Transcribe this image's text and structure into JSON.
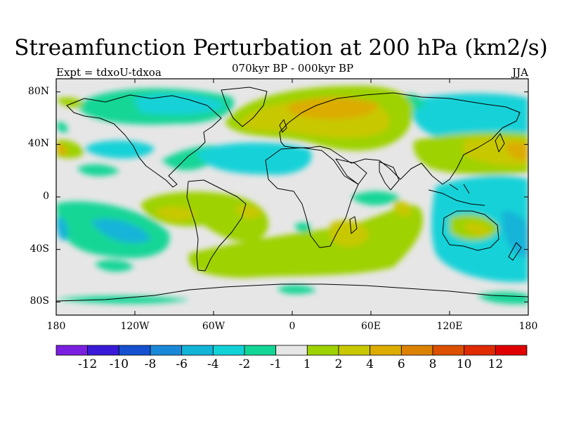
{
  "title": "Streamfunction Perturbation at 200 hPa (km2/s)",
  "experiment": "Expt = tdxoU-tdxoa",
  "subtitle": "070kyr BP - 000kyr BP",
  "season": "JJA",
  "lat_ticks": [
    "80N",
    "40N",
    "0",
    "40S",
    "80S"
  ],
  "lon_ticks": [
    "180",
    "120W",
    "60W",
    "0",
    "60E",
    "120E",
    "180"
  ],
  "colorbar": {
    "labels": [
      "-12",
      "-10",
      "-8",
      "-6",
      "-4",
      "-2",
      "-1",
      "1",
      "2",
      "4",
      "6",
      "8",
      "10",
      "12"
    ],
    "colors": [
      "#7a1ee0",
      "#3a1ad8",
      "#1450d0",
      "#1a88d8",
      "#12b4d8",
      "#12d2d8",
      "#12d696",
      "#e6e6e6",
      "#9ed200",
      "#c8c800",
      "#dcac00",
      "#dc8200",
      "#dc5000",
      "#e02a00",
      "#e00000"
    ]
  },
  "chart_data": {
    "type": "heatmap",
    "title": "Streamfunction Perturbation at 200 hPa (km2/s)",
    "subtitle": "070kyr BP - 000kyr BP",
    "xlabel": "",
    "ylabel": "",
    "xlim": [
      -180,
      180
    ],
    "ylim": [
      -90,
      90
    ],
    "x_ticks": [
      -180,
      -120,
      -60,
      0,
      60,
      120,
      180
    ],
    "y_ticks": [
      80,
      40,
      0,
      -40,
      -80
    ],
    "levels": [
      -12,
      -10,
      -8,
      -6,
      -4,
      -2,
      -1,
      1,
      2,
      4,
      6,
      8,
      10,
      12
    ],
    "features": [
      {
        "lon": -135,
        "lat": 70,
        "value": -2
      },
      {
        "lon": -110,
        "lat": 72,
        "value": -4
      },
      {
        "lon": -135,
        "lat": 40,
        "value": -2
      },
      {
        "lon": -80,
        "lat": 25,
        "value": -2
      },
      {
        "lon": -40,
        "lat": 28,
        "value": -4
      },
      {
        "lon": -25,
        "lat": 60,
        "value": 2
      },
      {
        "lon": 30,
        "lat": 65,
        "value": 6
      },
      {
        "lon": 60,
        "lat": 62,
        "value": 4
      },
      {
        "lon": 95,
        "lat": 50,
        "value": 2
      },
      {
        "lon": 130,
        "lat": 65,
        "value": -2
      },
      {
        "lon": 165,
        "lat": 38,
        "value": 4
      },
      {
        "lon": -175,
        "lat": 38,
        "value": 4
      },
      {
        "lon": -150,
        "lat": -25,
        "value": -2
      },
      {
        "lon": -130,
        "lat": -30,
        "value": -4
      },
      {
        "lon": -178,
        "lat": -25,
        "value": -4
      },
      {
        "lon": -100,
        "lat": -18,
        "value": 2
      },
      {
        "lon": -85,
        "lat": -15,
        "value": 4
      },
      {
        "lon": -30,
        "lat": -15,
        "value": 4
      },
      {
        "lon": 25,
        "lat": -32,
        "value": 2
      },
      {
        "lon": 40,
        "lat": -30,
        "value": 4
      },
      {
        "lon": 80,
        "lat": -10,
        "value": 2
      },
      {
        "lon": 105,
        "lat": -40,
        "value": 2
      },
      {
        "lon": 140,
        "lat": -25,
        "value": 4
      },
      {
        "lon": 135,
        "lat": 5,
        "value": -2
      },
      {
        "lon": 160,
        "lat": -35,
        "value": -2
      },
      {
        "lon": 178,
        "lat": -25,
        "value": -4
      },
      {
        "lon": 0,
        "lat": -75,
        "value": -2
      }
    ]
  }
}
